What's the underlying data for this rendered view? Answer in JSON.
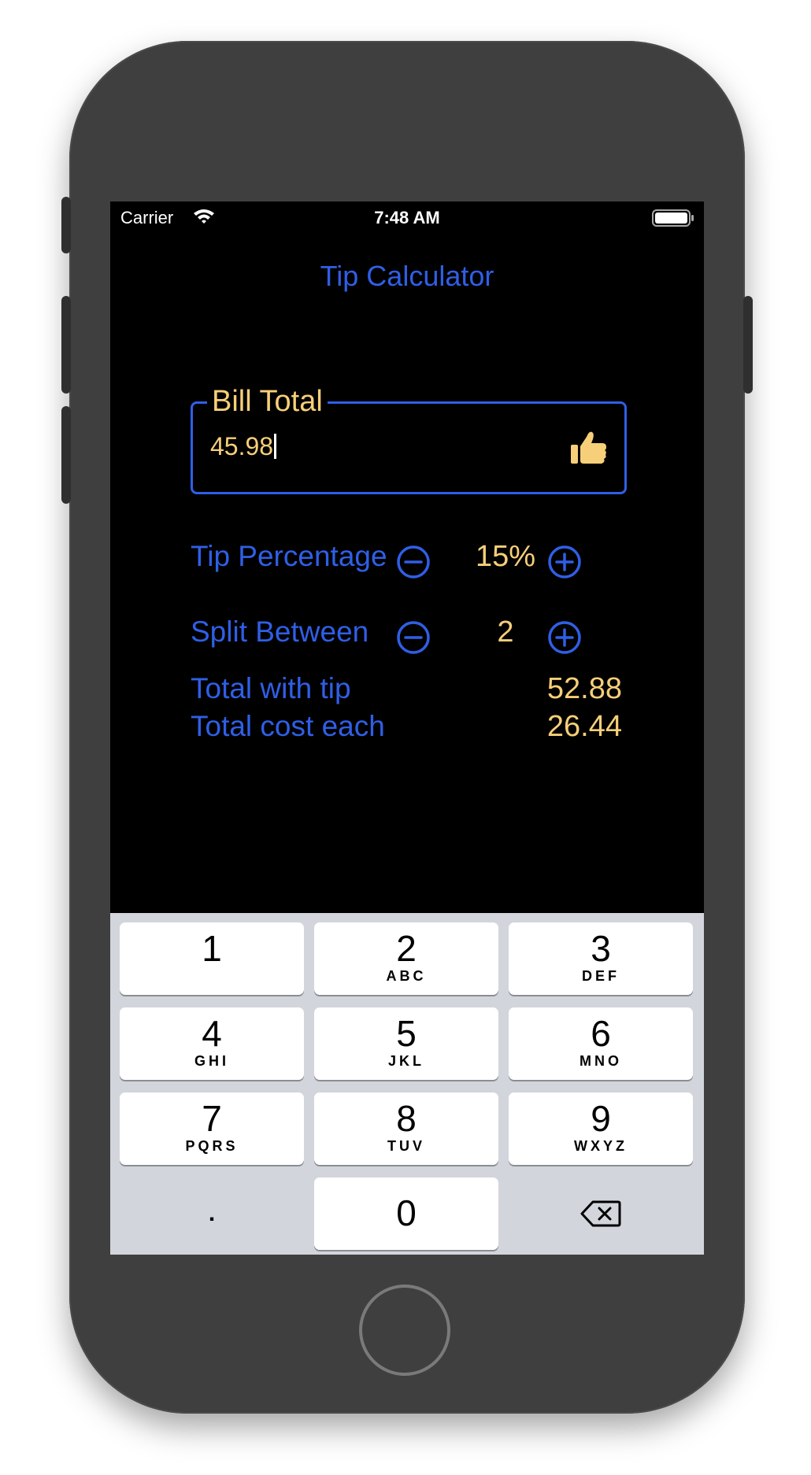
{
  "status_bar": {
    "carrier": "Carrier",
    "time": "7:48 AM"
  },
  "title": "Tip Calculator",
  "bill": {
    "label": "Bill Total",
    "value": "45.98",
    "icon": "thumbs-up-icon"
  },
  "tip": {
    "label": "Tip Percentage",
    "value": "15%"
  },
  "split": {
    "label": "Split Between",
    "value": "2"
  },
  "totals": {
    "with_tip_label": "Total with tip",
    "with_tip_value": "52.88",
    "each_label": "Total cost each",
    "each_value": "26.44"
  },
  "keypad": {
    "keys": [
      {
        "num": "1",
        "letters": ""
      },
      {
        "num": "2",
        "letters": "ABC"
      },
      {
        "num": "3",
        "letters": "DEF"
      },
      {
        "num": "4",
        "letters": "GHI"
      },
      {
        "num": "5",
        "letters": "JKL"
      },
      {
        "num": "6",
        "letters": "MNO"
      },
      {
        "num": "7",
        "letters": "PQRS"
      },
      {
        "num": "8",
        "letters": "TUV"
      },
      {
        "num": "9",
        "letters": "WXYZ"
      },
      {
        "num": "0",
        "letters": ""
      }
    ],
    "decimal": ".",
    "delete_icon": "backspace-icon"
  },
  "colors": {
    "accent_blue": "#2f5fe6",
    "value_gold": "#f6cf78",
    "screen_bg": "#000000",
    "keypad_bg": "#d2d5db"
  }
}
